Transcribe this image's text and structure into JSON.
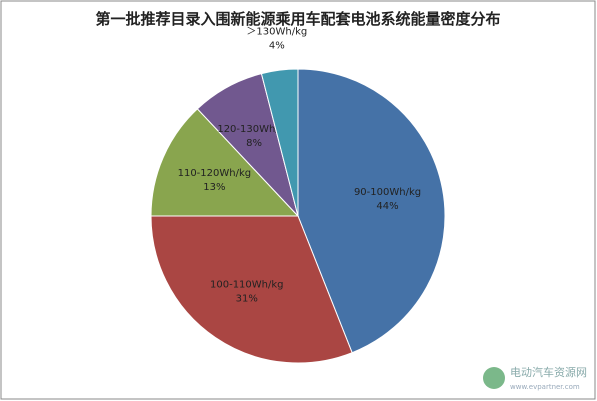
{
  "chart_data": {
    "type": "pie",
    "title": "第一批推荐目录入围新能源乘用车配套电池系统能量密度分布",
    "categories": [
      "90-100Wh/kg",
      "100-110Wh/kg",
      "110-120Wh/kg",
      "120-130Wh/kg",
      "＞130Wh/kg"
    ],
    "values": [
      44,
      31,
      13,
      8,
      4
    ],
    "value_labels": [
      "44%",
      "31%",
      "13%",
      "8%",
      "4%"
    ],
    "colors": [
      "#4572a7",
      "#aa4643",
      "#89a54e",
      "#71588f",
      "#4198af"
    ],
    "watermark": "电动汽车资源网",
    "watermark_url": "www.evpartner.com"
  }
}
